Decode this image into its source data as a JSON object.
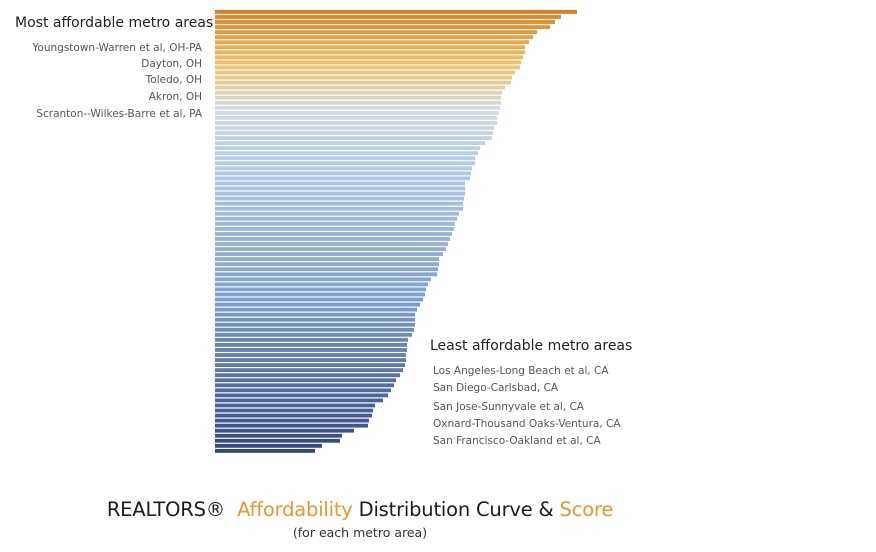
{
  "colors": {
    "top": "#e07f1a",
    "upper": "#f2c36a",
    "mid": "#d4dbe0",
    "light_blue": "#b7cfe9",
    "mid_blue": "#7f9fd2",
    "bottom": "#34487e",
    "accent": "#e8962f"
  },
  "chart_data": {
    "type": "bar",
    "orientation": "horizontal",
    "title": "REALTORS® Affordability Distribution Curve & Score",
    "subtitle": "(for each metro area)",
    "annotations": {
      "most_affordable": {
        "heading": "Most affordable metro areas",
        "items": [
          "Youngstown-Warren et al, OH-PA",
          "Dayton, OH",
          "Toledo, OH",
          "Akron, OH",
          "Scranton--Wilkes-Barre et al, PA"
        ]
      },
      "least_affordable": {
        "heading": "Least affordable metro areas",
        "items": [
          "Los Angeles-Long Beach et al, CA",
          "San Diego-Carlsbad, CA",
          "San Jose-Sunnyvale et al, CA",
          "Oxnard-Thousand Oaks-Ventura, CA",
          "San Francisco-Oakland et al, CA"
        ]
      }
    },
    "values": [
      362,
      346,
      340,
      335,
      322,
      318,
      314,
      310,
      310,
      308,
      306,
      305,
      300,
      297,
      296,
      290,
      287,
      286,
      286,
      285,
      284,
      282,
      282,
      279,
      278,
      277,
      270,
      265,
      263,
      260,
      260,
      257,
      256,
      255,
      250,
      250,
      250,
      249,
      248,
      248,
      244,
      242,
      240,
      239,
      237,
      235,
      233,
      231,
      228,
      224,
      224,
      223,
      222,
      216,
      213,
      211,
      210,
      208,
      205,
      202,
      200,
      200,
      200,
      199,
      197,
      193,
      192,
      192,
      191,
      191,
      190,
      188,
      185,
      181,
      179,
      176,
      173,
      168,
      160,
      158,
      157,
      154,
      153,
      139,
      127,
      125,
      107,
      100
    ]
  },
  "footer": {
    "part1": "REALTORS®",
    "part2": "Affordability",
    "part3": "Distribution Curve &",
    "part4": "Score",
    "subtitle": "(for each metro area)"
  }
}
